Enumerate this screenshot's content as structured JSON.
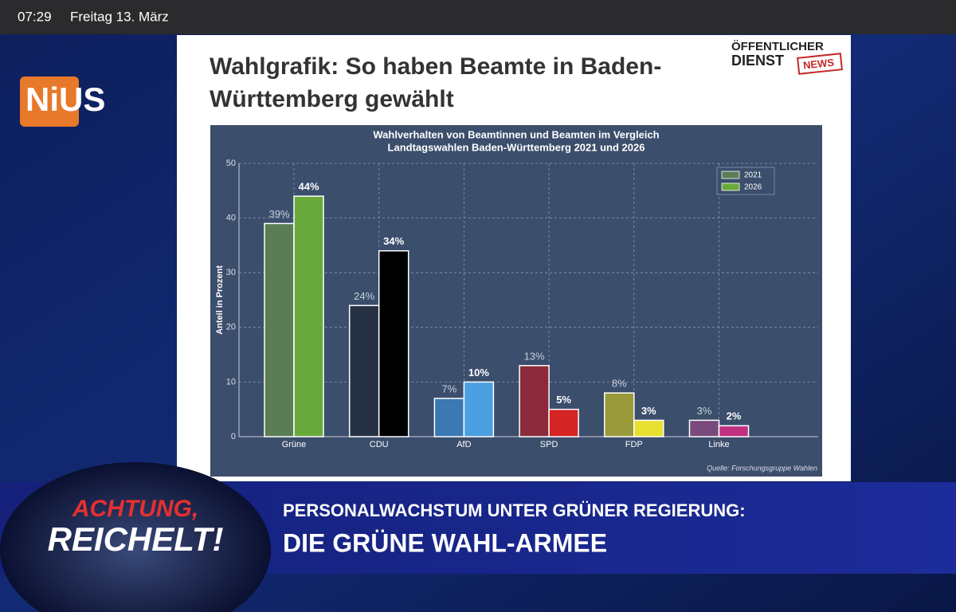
{
  "status_bar": {
    "time": "07:29",
    "date": "Freitag 13. März"
  },
  "channel_logo": "NiUS",
  "slide": {
    "title_lines": [
      "Wahlgrafik: So haben Beamte in Baden-",
      "Württemberg gewählt"
    ],
    "brand": {
      "line1": "ÖFFENTLICHER",
      "line2": "DIENST",
      "badge": "NEWS"
    }
  },
  "chart_data": {
    "type": "bar",
    "title": [
      "Wahlverhalten von Beamtinnen und Beamten im Vergleich",
      "Landtagswahlen Baden-Württemberg 2021 und 2026"
    ],
    "y_label": "Anteil in Prozent",
    "source": "Quelle: Forschungsgruppe Wahlen",
    "categories": [
      "Grüne",
      "CDU",
      "AfD",
      "SPD",
      "FDP",
      "Linke"
    ],
    "series": [
      {
        "name": "2021",
        "color": "#5b7d55",
        "colors": [
          "#5b7d55",
          "#263244",
          "#3b78b4",
          "#8a2a3a",
          "#9a9a3a",
          "#7a4a7e"
        ],
        "values": [
          39,
          24,
          7,
          13,
          8,
          3
        ],
        "value_labels": [
          "39%",
          "24%",
          "7%",
          "13%",
          "8%",
          "3%"
        ]
      },
      {
        "name": "2026",
        "color": "#6aaa3c",
        "colors": [
          "#6aaa3c",
          "#000000",
          "#4aa0e0",
          "#d42424",
          "#e8e030",
          "#c0307e"
        ],
        "values": [
          44,
          34,
          10,
          5,
          3,
          2
        ],
        "value_labels": [
          "44%",
          "34%",
          "10%",
          "5%",
          "3%",
          "2%"
        ]
      }
    ],
    "ylim": [
      0,
      50
    ],
    "yticks": [
      0,
      10,
      20,
      30,
      40,
      50
    ],
    "grid": true,
    "legend": "upper right"
  },
  "show": {
    "line1": "ACHTUNG,",
    "line2": "REICHELT!"
  },
  "headline": {
    "line1": "PERSONALWACHSTUM UNTER GRÜNER REGIERUNG:",
    "line2": "DIE GRÜNE WAHL-ARMEE"
  }
}
